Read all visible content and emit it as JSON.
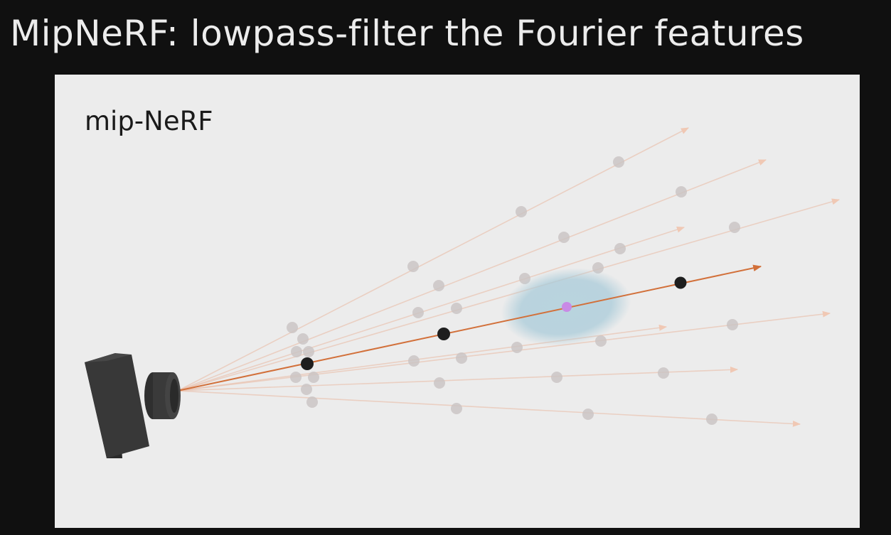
{
  "slide": {
    "title": "MipNeRF: lowpass-filter the Fourier features"
  },
  "figure": {
    "label": "mip-NeRF",
    "components": {
      "camera": "camera-icon",
      "main_ray": "ray-arrow",
      "gaussian": "conical-frustum-gaussian"
    },
    "colors": {
      "background": "#101010",
      "panel": "#ececec",
      "main_ray": "#d2703a",
      "faint_rays": "#e8b8a0",
      "gaussian": "#a9cbd9",
      "center_point": "#c98ae6",
      "sample_point": "#1e1e1e",
      "faint_point": "#c9c3c3"
    }
  }
}
